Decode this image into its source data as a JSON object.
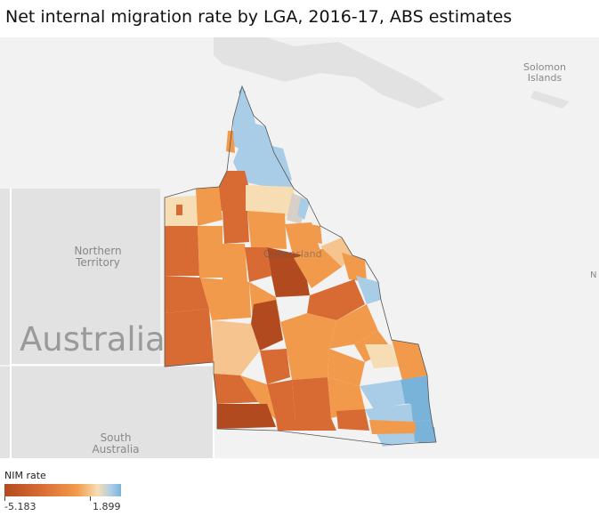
{
  "title": "Net internal migration rate by LGA, 2016-17, ABS estimates",
  "map": {
    "labels": {
      "solomon": "Solomon\nIslands",
      "northern_territory": "Northern\nTerritory",
      "australia": "Australia",
      "south_australia": "South\nAustralia",
      "queensland": "Queensland",
      "edge_letter": "N"
    },
    "colors": {
      "land": "#e2e2e2",
      "sea": "#f2f2f2",
      "border": "#ffffff",
      "qld_outline": "#555555"
    }
  },
  "legend": {
    "title": "NIM rate",
    "min": "-5.183",
    "max": "1.899",
    "colors": [
      "#b24a1f",
      "#d86a33",
      "#f29a4c",
      "#f6ddb4",
      "#a9cde6",
      "#7ab3da"
    ]
  }
}
